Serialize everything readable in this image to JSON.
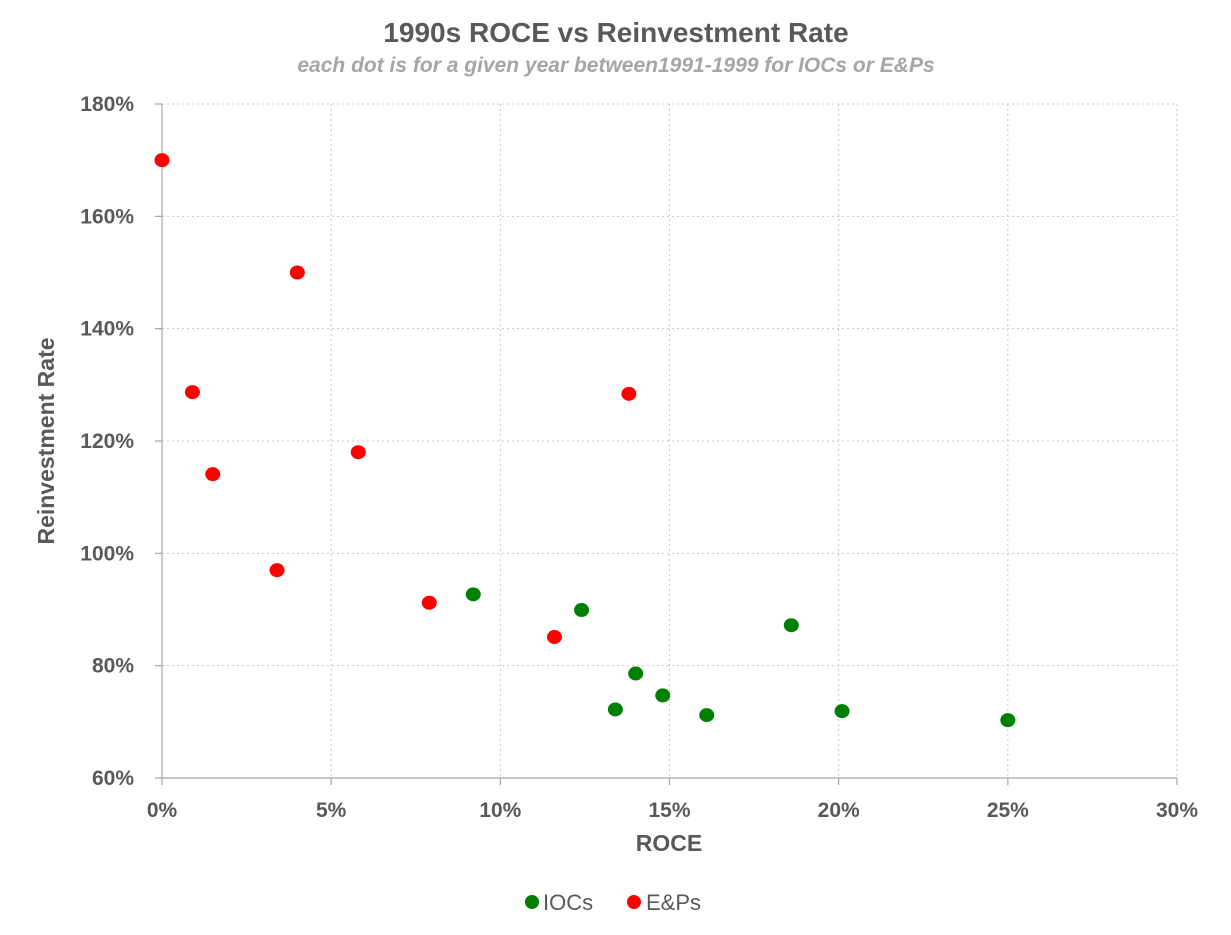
{
  "chart_data": {
    "type": "scatter",
    "title": "1990s ROCE vs Reinvestment Rate",
    "subtitle": "each dot is for a given year between1991-1999 for IOCs or E&Ps",
    "xlabel": "ROCE",
    "ylabel": "Reinvestment Rate",
    "xlim": [
      0,
      0.3
    ],
    "ylim": [
      0.6,
      1.8
    ],
    "x_ticks": [
      0,
      0.05,
      0.1,
      0.15,
      0.2,
      0.25,
      0.3
    ],
    "y_ticks": [
      0.6,
      0.8,
      1.0,
      1.2,
      1.4,
      1.6,
      1.8
    ],
    "x_tick_labels": [
      "0%",
      "5%",
      "10%",
      "15%",
      "20%",
      "25%",
      "30%"
    ],
    "y_tick_labels": [
      "60%",
      "80%",
      "100%",
      "120%",
      "140%",
      "160%",
      "180%"
    ],
    "grid": true,
    "legend_position": "bottom",
    "series": [
      {
        "name": "IOCs",
        "color": "#008000",
        "points": [
          {
            "x": 0.092,
            "y": 0.927
          },
          {
            "x": 0.124,
            "y": 0.899
          },
          {
            "x": 0.134,
            "y": 0.722
          },
          {
            "x": 0.14,
            "y": 0.786
          },
          {
            "x": 0.148,
            "y": 0.747
          },
          {
            "x": 0.161,
            "y": 0.712
          },
          {
            "x": 0.186,
            "y": 0.872
          },
          {
            "x": 0.201,
            "y": 0.719
          },
          {
            "x": 0.25,
            "y": 0.703
          }
        ]
      },
      {
        "name": "E&Ps",
        "color": "#ff0000",
        "points": [
          {
            "x": 0.0,
            "y": 1.7
          },
          {
            "x": 0.009,
            "y": 1.287
          },
          {
            "x": 0.015,
            "y": 1.141
          },
          {
            "x": 0.034,
            "y": 0.97
          },
          {
            "x": 0.04,
            "y": 1.5
          },
          {
            "x": 0.058,
            "y": 1.18
          },
          {
            "x": 0.079,
            "y": 0.912
          },
          {
            "x": 0.116,
            "y": 0.851
          },
          {
            "x": 0.138,
            "y": 1.284
          }
        ]
      }
    ]
  }
}
